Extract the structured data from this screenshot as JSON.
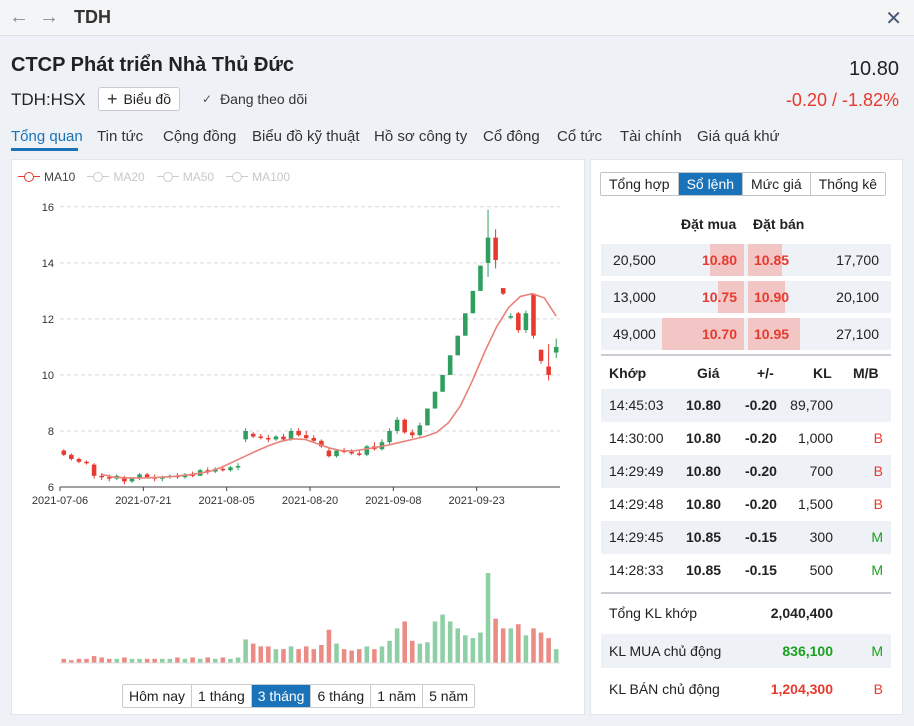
{
  "window": {
    "title": "TDH"
  },
  "header": {
    "company": "CTCP Phát triển Nhà Thủ Đức",
    "price": "10.80",
    "ticker": "TDH:HSX",
    "chart_button": "Biểu đồ",
    "follow": "Đang theo dõi",
    "change": "-0.20 / -1.82%"
  },
  "tabs": [
    "Tổng quan",
    "Tin tức",
    "Cộng đồng",
    "Biểu đồ kỹ thuật",
    "Hồ sơ công ty",
    "Cổ đông",
    "Cổ tức",
    "Tài chính",
    "Giá quá khứ"
  ],
  "ma_legend": [
    {
      "label": "MA10",
      "active": true
    },
    {
      "label": "MA20",
      "active": false
    },
    {
      "label": "MA50",
      "active": false
    },
    {
      "label": "MA100",
      "active": false
    }
  ],
  "periods": [
    {
      "label": "Hôm nay",
      "active": false
    },
    {
      "label": "1 tháng",
      "active": false
    },
    {
      "label": "3 tháng",
      "active": true
    },
    {
      "label": "6 tháng",
      "active": false
    },
    {
      "label": "1 năm",
      "active": false
    },
    {
      "label": "5 năm",
      "active": false
    }
  ],
  "chart_data": {
    "type": "candlestick",
    "x_ticks": [
      "2021-07-06",
      "2021-07-21",
      "2021-08-05",
      "2021-08-20",
      "2021-09-08",
      "2021-09-23"
    ],
    "y_ticks": [
      6,
      8,
      10,
      12,
      14,
      16
    ],
    "ylim": [
      6,
      16.6
    ],
    "candles": [
      [
        7.3,
        7.35,
        7.1,
        7.15
      ],
      [
        7.15,
        7.2,
        6.95,
        7.0
      ],
      [
        7.0,
        7.05,
        6.85,
        6.9
      ],
      [
        6.9,
        6.95,
        6.8,
        6.85
      ],
      [
        6.8,
        6.85,
        6.3,
        6.4
      ],
      [
        6.4,
        6.5,
        6.25,
        6.35
      ],
      [
        6.35,
        6.45,
        6.2,
        6.3
      ],
      [
        6.3,
        6.45,
        6.25,
        6.4
      ],
      [
        6.35,
        6.4,
        6.1,
        6.2
      ],
      [
        6.2,
        6.35,
        6.15,
        6.3
      ],
      [
        6.3,
        6.5,
        6.25,
        6.45
      ],
      [
        6.45,
        6.5,
        6.3,
        6.35
      ],
      [
        6.35,
        6.45,
        6.2,
        6.3
      ],
      [
        6.3,
        6.4,
        6.2,
        6.35
      ],
      [
        6.35,
        6.45,
        6.3,
        6.4
      ],
      [
        6.4,
        6.5,
        6.3,
        6.35
      ],
      [
        6.35,
        6.5,
        6.3,
        6.45
      ],
      [
        6.45,
        6.55,
        6.35,
        6.4
      ],
      [
        6.4,
        6.65,
        6.4,
        6.6
      ],
      [
        6.6,
        6.7,
        6.45,
        6.55
      ],
      [
        6.55,
        6.7,
        6.5,
        6.65
      ],
      [
        6.65,
        6.75,
        6.55,
        6.6
      ],
      [
        6.6,
        6.75,
        6.55,
        6.7
      ],
      [
        6.7,
        6.85,
        6.6,
        6.75
      ],
      [
        7.7,
        8.1,
        7.6,
        8.0
      ],
      [
        7.9,
        7.95,
        7.75,
        7.8
      ],
      [
        7.8,
        7.9,
        7.7,
        7.75
      ],
      [
        7.75,
        7.85,
        7.6,
        7.7
      ],
      [
        7.7,
        7.85,
        7.65,
        7.8
      ],
      [
        7.8,
        7.9,
        7.65,
        7.7
      ],
      [
        7.7,
        8.1,
        7.65,
        8.0
      ],
      [
        8.0,
        8.1,
        7.8,
        7.85
      ],
      [
        7.85,
        8.0,
        7.7,
        7.75
      ],
      [
        7.75,
        7.85,
        7.6,
        7.65
      ],
      [
        7.65,
        7.7,
        7.4,
        7.45
      ],
      [
        7.3,
        7.4,
        7.05,
        7.1
      ],
      [
        7.1,
        7.35,
        7.05,
        7.3
      ],
      [
        7.3,
        7.4,
        7.2,
        7.25
      ],
      [
        7.25,
        7.35,
        7.15,
        7.2
      ],
      [
        7.2,
        7.3,
        7.1,
        7.15
      ],
      [
        7.15,
        7.5,
        7.1,
        7.45
      ],
      [
        7.45,
        7.6,
        7.3,
        7.35
      ],
      [
        7.35,
        7.7,
        7.3,
        7.6
      ],
      [
        7.6,
        8.1,
        7.5,
        8.0
      ],
      [
        8.0,
        8.5,
        7.9,
        8.4
      ],
      [
        8.4,
        8.45,
        7.9,
        7.95
      ],
      [
        7.95,
        8.05,
        7.75,
        7.85
      ],
      [
        7.85,
        8.3,
        7.8,
        8.2
      ],
      [
        8.2,
        8.8,
        8.2,
        8.8
      ],
      [
        8.8,
        9.4,
        8.8,
        9.4
      ],
      [
        9.4,
        10.0,
        9.4,
        10.0
      ],
      [
        10.0,
        10.7,
        10.0,
        10.7
      ],
      [
        10.7,
        11.4,
        10.7,
        11.4
      ],
      [
        11.4,
        12.2,
        11.4,
        12.2
      ],
      [
        12.2,
        13.0,
        12.2,
        13.0
      ],
      [
        13.0,
        13.9,
        13.0,
        13.9
      ],
      [
        14.0,
        15.9,
        13.5,
        14.9
      ],
      [
        14.9,
        15.2,
        13.8,
        14.1
      ],
      [
        13.1,
        13.1,
        12.85,
        12.9
      ],
      [
        12.1,
        12.2,
        12.0,
        12.1
      ],
      [
        12.2,
        12.25,
        11.5,
        11.6
      ],
      [
        11.6,
        12.3,
        11.5,
        12.2
      ],
      [
        12.9,
        12.9,
        11.3,
        11.4
      ],
      [
        10.9,
        10.9,
        10.4,
        10.5
      ],
      [
        10.3,
        11.1,
        9.8,
        10.0
      ],
      [
        10.8,
        11.3,
        10.6,
        11.0
      ]
    ],
    "ma10": [
      6.45,
      6.35,
      6.33,
      6.32,
      6.33,
      6.35,
      6.38,
      6.42,
      6.48,
      6.55,
      6.7,
      6.9,
      7.1,
      7.3,
      7.48,
      7.63,
      7.72,
      7.7,
      7.55,
      7.4,
      7.3,
      7.28,
      7.35,
      7.42,
      7.5,
      7.6,
      7.7,
      7.8,
      7.95,
      8.3,
      8.9,
      9.8,
      10.8,
      11.7,
      12.4,
      12.8,
      12.9,
      12.75,
      12.1
    ],
    "volumes": [
      0.03,
      0.02,
      0.03,
      0.03,
      0.05,
      0.04,
      0.03,
      0.03,
      0.04,
      0.03,
      0.03,
      0.03,
      0.03,
      0.03,
      0.03,
      0.04,
      0.03,
      0.04,
      0.03,
      0.04,
      0.03,
      0.04,
      0.03,
      0.04,
      0.17,
      0.14,
      0.12,
      0.12,
      0.1,
      0.1,
      0.12,
      0.1,
      0.12,
      0.1,
      0.13,
      0.24,
      0.14,
      0.1,
      0.09,
      0.1,
      0.12,
      0.1,
      0.12,
      0.16,
      0.25,
      0.3,
      0.16,
      0.14,
      0.15,
      0.3,
      0.35,
      0.3,
      0.25,
      0.2,
      0.18,
      0.22,
      0.65,
      0.32,
      0.25,
      0.25,
      0.28,
      0.2,
      0.25,
      0.22,
      0.18,
      0.1
    ]
  },
  "right": {
    "tabs": [
      {
        "label": "Tổng hợp",
        "active": false
      },
      {
        "label": "Sổ lệnh",
        "active": true
      },
      {
        "label": "Mức giá",
        "active": false
      },
      {
        "label": "Thống kê",
        "active": false
      }
    ],
    "book_headers": {
      "buy": "Đặt mua",
      "sell": "Đặt bán"
    },
    "book": [
      {
        "buy_vol": "20,500",
        "buy_price": "10.80",
        "sell_price": "10.85",
        "sell_vol": "17,700",
        "buy_frac": 0.4,
        "sell_frac": 0.4
      },
      {
        "buy_vol": "13,000",
        "buy_price": "10.75",
        "sell_price": "10.90",
        "sell_vol": "20,100",
        "buy_frac": 0.3,
        "sell_frac": 0.43
      },
      {
        "buy_vol": "49,000",
        "buy_price": "10.70",
        "sell_price": "10.95",
        "sell_vol": "27,100",
        "buy_frac": 0.95,
        "sell_frac": 0.6
      }
    ],
    "trade_headers": {
      "time": "Khớp",
      "price": "Giá",
      "change": "+/-",
      "vol": "KL",
      "side": "M/B"
    },
    "trades": [
      {
        "time": "14:45:03",
        "price": "10.80",
        "change": "-0.20",
        "vol": "89,700",
        "side": "",
        "price_color": "red"
      },
      {
        "time": "14:30:00",
        "price": "10.80",
        "change": "-0.20",
        "vol": "1,000",
        "side": "B",
        "price_color": "red"
      },
      {
        "time": "14:29:49",
        "price": "10.80",
        "change": "-0.20",
        "vol": "700",
        "side": "B",
        "price_color": "red"
      },
      {
        "time": "14:29:48",
        "price": "10.80",
        "change": "-0.20",
        "vol": "1,500",
        "side": "B",
        "price_color": "red"
      },
      {
        "time": "14:29:45",
        "price": "10.85",
        "change": "-0.15",
        "vol": "300",
        "side": "M",
        "price_color": "red"
      },
      {
        "time": "14:28:33",
        "price": "10.85",
        "change": "-0.15",
        "vol": "500",
        "side": "M",
        "price_color": "red"
      }
    ],
    "summary": [
      {
        "label": "Tổng KL khớp",
        "value": "2,040,400",
        "side": "",
        "color": "dark"
      },
      {
        "label": "KL MUA chủ động",
        "value": "836,100",
        "side": "M",
        "color": "green"
      },
      {
        "label": "KL BÁN chủ động",
        "value": "1,204,300",
        "side": "B",
        "color": "red"
      }
    ]
  },
  "colors": {
    "up": "#2f9e5e",
    "down": "#e8392e",
    "accent": "#1a73b8",
    "ma10": "#e8392e"
  }
}
